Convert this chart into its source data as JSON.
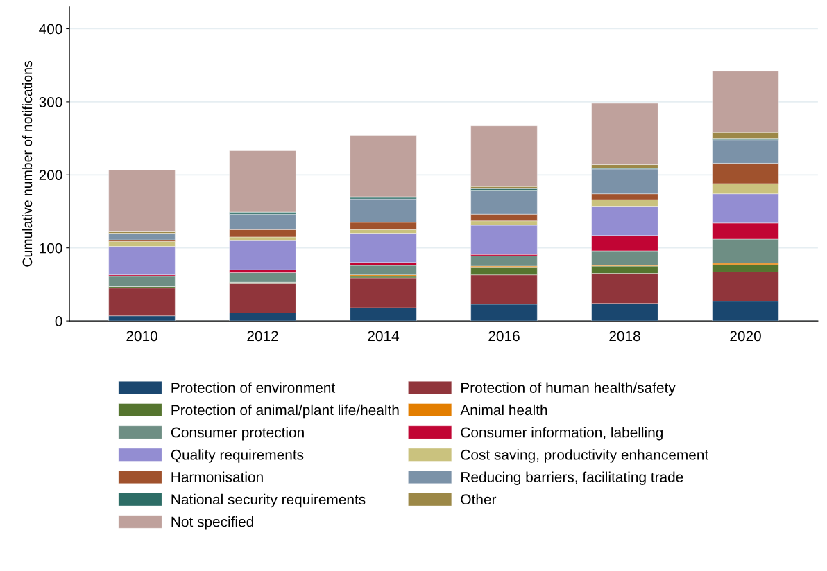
{
  "chart_data": {
    "type": "bar",
    "stacked": true,
    "ylabel": "Cumulative number of notifications",
    "categories": [
      "2010",
      "2012",
      "2014",
      "2016",
      "2018",
      "2020"
    ],
    "ylim": [
      0,
      430
    ],
    "yticks": [
      0,
      100,
      200,
      300,
      400
    ],
    "grid": "y",
    "legend": "bottom",
    "series": [
      {
        "name": "Protection of environment",
        "color": "#1a476f",
        "values": [
          7,
          11,
          18,
          23,
          24,
          27
        ]
      },
      {
        "name": "Protection of human health/safety",
        "color": "#90353b",
        "values": [
          38,
          40,
          41,
          40,
          41,
          40
        ]
      },
      {
        "name": "Protection of animal/plant life/health",
        "color": "#55752f",
        "values": [
          2,
          2,
          2,
          10,
          10,
          10
        ]
      },
      {
        "name": "Animal health",
        "color": "#e37e00",
        "values": [
          0,
          0,
          2,
          2,
          1,
          2
        ]
      },
      {
        "name": "Consumer protection",
        "color": "#6e8e84",
        "values": [
          14,
          13,
          13,
          14,
          20,
          33
        ]
      },
      {
        "name": "Consumer information, labelling",
        "color": "#c10534",
        "values": [
          2,
          4,
          4,
          2,
          21,
          22
        ]
      },
      {
        "name": "Quality requirements",
        "color": "#938dd2",
        "values": [
          39,
          40,
          40,
          40,
          40,
          40
        ]
      },
      {
        "name": "Cost saving, productivity enhancement",
        "color": "#cac27e",
        "values": [
          7,
          5,
          5,
          6,
          9,
          14
        ]
      },
      {
        "name": "Harmonisation",
        "color": "#a0522d",
        "values": [
          2,
          10,
          10,
          9,
          8,
          28
        ]
      },
      {
        "name": "Reducing barriers, facilitating trade",
        "color": "#7b92a8",
        "values": [
          9,
          21,
          32,
          33,
          34,
          32
        ]
      },
      {
        "name": "National security requirements",
        "color": "#2d6d66",
        "values": [
          0,
          3,
          2,
          2,
          1,
          2
        ]
      },
      {
        "name": "Other",
        "color": "#9c8847",
        "values": [
          2,
          0,
          1,
          3,
          5,
          8
        ]
      },
      {
        "name": "Not specified",
        "color": "#bfa19c",
        "values": [
          85,
          84,
          84,
          83,
          84,
          84
        ]
      }
    ]
  }
}
